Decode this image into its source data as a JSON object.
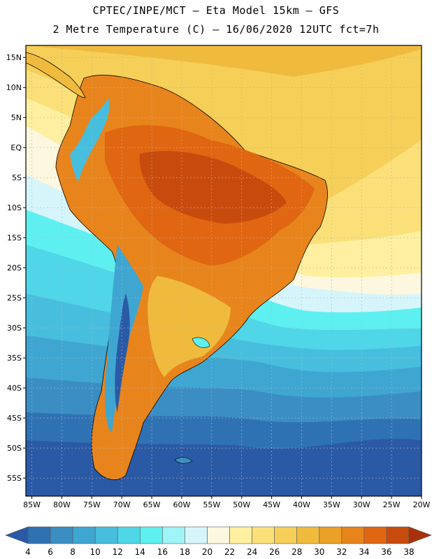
{
  "header": {
    "line1": "CPTEC/INPE/MCT –  Eta Model 15km – GFS",
    "line2": "2 Metre Temperature (C) – 16/06/2020 12UTC fct=7h"
  },
  "map": {
    "lon_range": [
      -86,
      -20
    ],
    "lat_range": [
      -58,
      17
    ],
    "lat_ticks": [
      {
        "lat": 15,
        "label": "15N"
      },
      {
        "lat": 10,
        "label": "10N"
      },
      {
        "lat": 5,
        "label": "5N"
      },
      {
        "lat": 0,
        "label": "EQ"
      },
      {
        "lat": -5,
        "label": "5S"
      },
      {
        "lat": -10,
        "label": "10S"
      },
      {
        "lat": -15,
        "label": "15S"
      },
      {
        "lat": -20,
        "label": "20S"
      },
      {
        "lat": -25,
        "label": "25S"
      },
      {
        "lat": -30,
        "label": "30S"
      },
      {
        "lat": -35,
        "label": "35S"
      },
      {
        "lat": -40,
        "label": "40S"
      },
      {
        "lat": -45,
        "label": "45S"
      },
      {
        "lat": -50,
        "label": "50S"
      },
      {
        "lat": -55,
        "label": "55S"
      }
    ],
    "lon_ticks": [
      {
        "lon": -85,
        "label": "85W"
      },
      {
        "lon": -80,
        "label": "80W"
      },
      {
        "lon": -75,
        "label": "75W"
      },
      {
        "lon": -70,
        "label": "70W"
      },
      {
        "lon": -65,
        "label": "65W"
      },
      {
        "lon": -60,
        "label": "60W"
      },
      {
        "lon": -55,
        "label": "55W"
      },
      {
        "lon": -50,
        "label": "50W"
      },
      {
        "lon": -45,
        "label": "45W"
      },
      {
        "lon": -40,
        "label": "40W"
      },
      {
        "lon": -35,
        "label": "35W"
      },
      {
        "lon": -30,
        "label": "30W"
      },
      {
        "lon": -25,
        "label": "25W"
      },
      {
        "lon": -20,
        "label": "20W"
      }
    ]
  },
  "colorbar": {
    "unit": "C",
    "levels": [
      "4",
      "6",
      "8",
      "10",
      "12",
      "14",
      "16",
      "18",
      "20",
      "22",
      "24",
      "26",
      "28",
      "30",
      "32",
      "34",
      "36",
      "38"
    ],
    "colors": [
      "#2a5aa6",
      "#2f72b4",
      "#3a8ec4",
      "#3fa6d1",
      "#47bedd",
      "#4fd6e8",
      "#5ef0f0",
      "#9ef4f6",
      "#d6f5fb",
      "#fdf7df",
      "#fef0a0",
      "#fbe07a",
      "#f5cf58",
      "#f0bb3d",
      "#eba126",
      "#e8841c",
      "#e06612",
      "#c84b0e",
      "#a8300a"
    ]
  }
}
